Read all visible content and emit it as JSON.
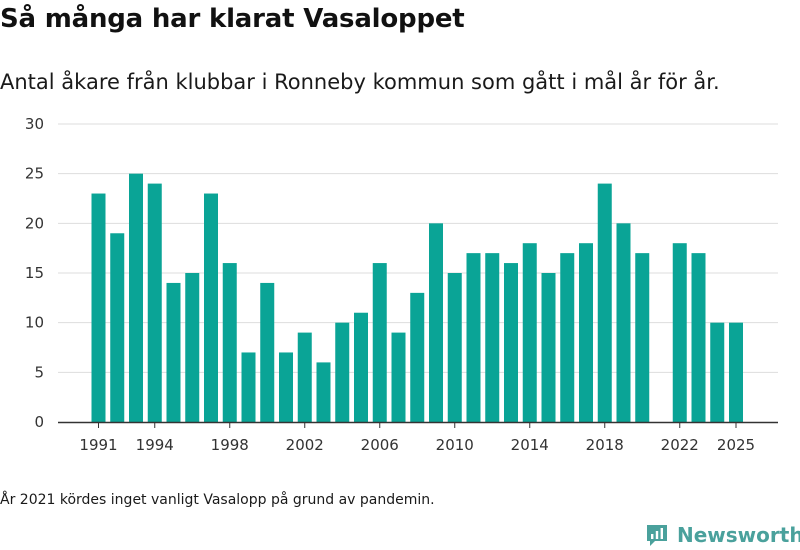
{
  "header": {
    "title": "Så många har klarat Vasaloppet",
    "subtitle": "Antal åkare från klubbar i Ronneby kommun som gått i mål år för år."
  },
  "footer": {
    "note": "År 2021 kördes inget vanligt Vasalopp på grund av pandemin.",
    "brand": "Newsworthy"
  },
  "colors": {
    "bar": "#0aa496",
    "grid": "#dddddd",
    "axis": "#333333",
    "brand": "#4aa19c"
  },
  "chart_data": {
    "type": "bar",
    "title": "Så många har klarat Vasaloppet",
    "subtitle": "Antal åkare från klubbar i Ronneby kommun som gått i mål år för år.",
    "xlabel": "",
    "ylabel": "",
    "ylim": [
      0,
      30
    ],
    "yticks": [
      0,
      5,
      10,
      15,
      20,
      25,
      30
    ],
    "xlim": [
      1990,
      2026
    ],
    "xticks": [
      1991,
      1994,
      1998,
      2002,
      2006,
      2010,
      2014,
      2018,
      2022,
      2025
    ],
    "grid": true,
    "legend": "none",
    "x": [
      1991,
      1992,
      1993,
      1994,
      1995,
      1996,
      1997,
      1998,
      1999,
      2000,
      2001,
      2002,
      2003,
      2004,
      2005,
      2006,
      2007,
      2008,
      2009,
      2010,
      2011,
      2012,
      2013,
      2014,
      2015,
      2016,
      2017,
      2018,
      2019,
      2020,
      2022,
      2023,
      2024,
      2025
    ],
    "values": [
      23,
      19,
      25,
      24,
      14,
      15,
      23,
      16,
      7,
      14,
      7,
      9,
      6,
      10,
      11,
      16,
      9,
      13,
      20,
      15,
      17,
      17,
      16,
      18,
      15,
      17,
      18,
      24,
      20,
      17,
      18,
      17,
      10,
      10
    ]
  }
}
